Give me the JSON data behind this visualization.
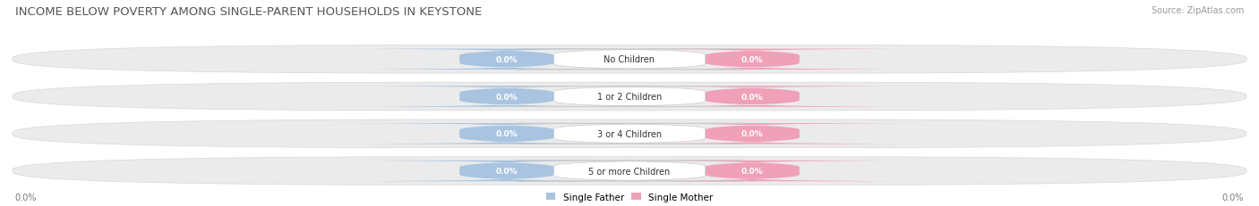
{
  "title": "INCOME BELOW POVERTY AMONG SINGLE-PARENT HOUSEHOLDS IN KEYSTONE",
  "source": "Source: ZipAtlas.com",
  "categories": [
    "No Children",
    "1 or 2 Children",
    "3 or 4 Children",
    "5 or more Children"
  ],
  "father_values": [
    0.0,
    0.0,
    0.0,
    0.0
  ],
  "mother_values": [
    0.0,
    0.0,
    0.0,
    0.0
  ],
  "father_color": "#a8c4e0",
  "mother_color": "#f0a0b8",
  "row_bg_color": "#ebebeb",
  "row_border_color": "#d8d8d8",
  "title_fontsize": 9.5,
  "source_fontsize": 7,
  "value_label_fontsize": 6.5,
  "cat_label_fontsize": 7,
  "axis_label": "0.0%",
  "legend_father": "Single Father",
  "legend_mother": "Single Mother",
  "fig_width": 14.06,
  "fig_height": 2.32,
  "bg_color": "#ffffff"
}
